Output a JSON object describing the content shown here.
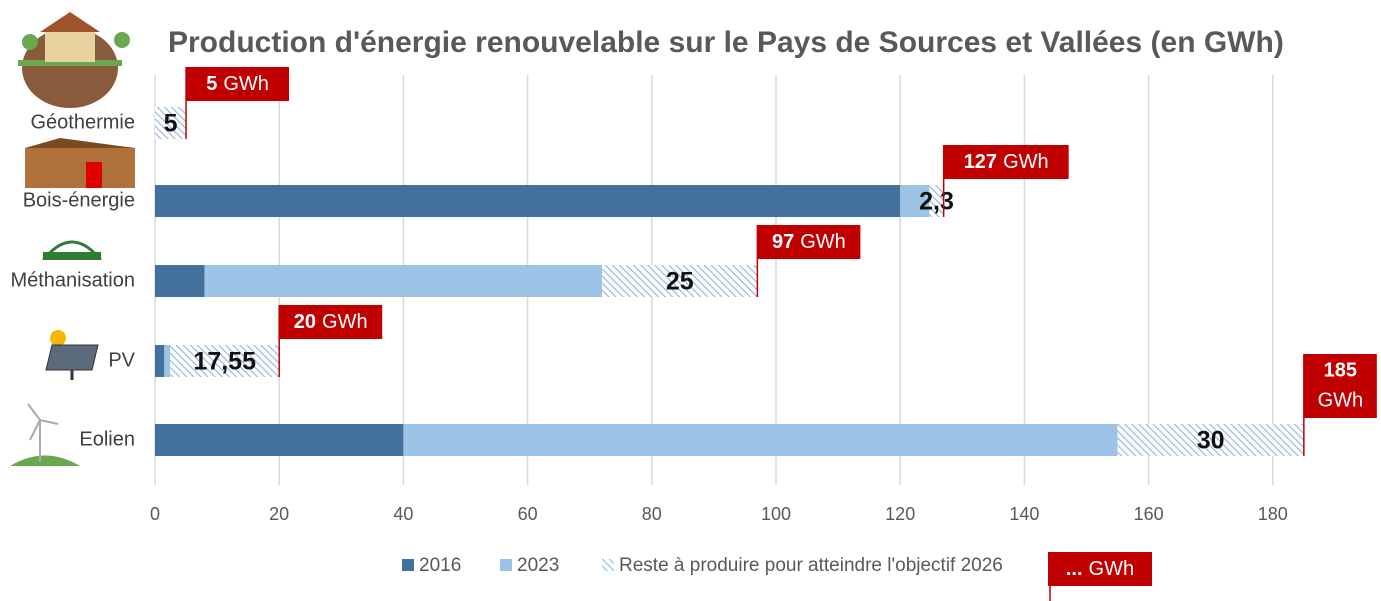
{
  "chart_data": {
    "type": "stacked-barh",
    "title": "Production d'énergie renouvelable sur le Pays de Sources et Vallées (en GWh)",
    "categories": [
      "Géothermie",
      "Bois-énergie",
      "Méthanisation",
      "PV",
      "Eolien"
    ],
    "series": [
      {
        "name": "2016",
        "color": "#43719e",
        "values": [
          0,
          120,
          8,
          1.5,
          40
        ]
      },
      {
        "name": "2023",
        "color": "#9dc3e6",
        "values": [
          0,
          4.7,
          64,
          0.95,
          115
        ]
      },
      {
        "name": "Reste à produire pour atteindre l'objectif 2026",
        "color": "#8fb4de",
        "pattern": "hatch",
        "values": [
          5,
          2.3,
          25,
          17.55,
          30
        ],
        "value_labels": [
          "5",
          "2,3",
          "25",
          "17,55",
          "30"
        ]
      }
    ],
    "targets": [
      5,
      127,
      97,
      20,
      185
    ],
    "target_unit": "GWh",
    "legend_note": "...",
    "target_color": "#c00000",
    "xlim": [
      0,
      190
    ],
    "xticks": [
      0,
      20,
      40,
      60,
      80,
      100,
      120,
      140,
      160,
      180
    ],
    "grid": true,
    "legend": "bottom"
  }
}
